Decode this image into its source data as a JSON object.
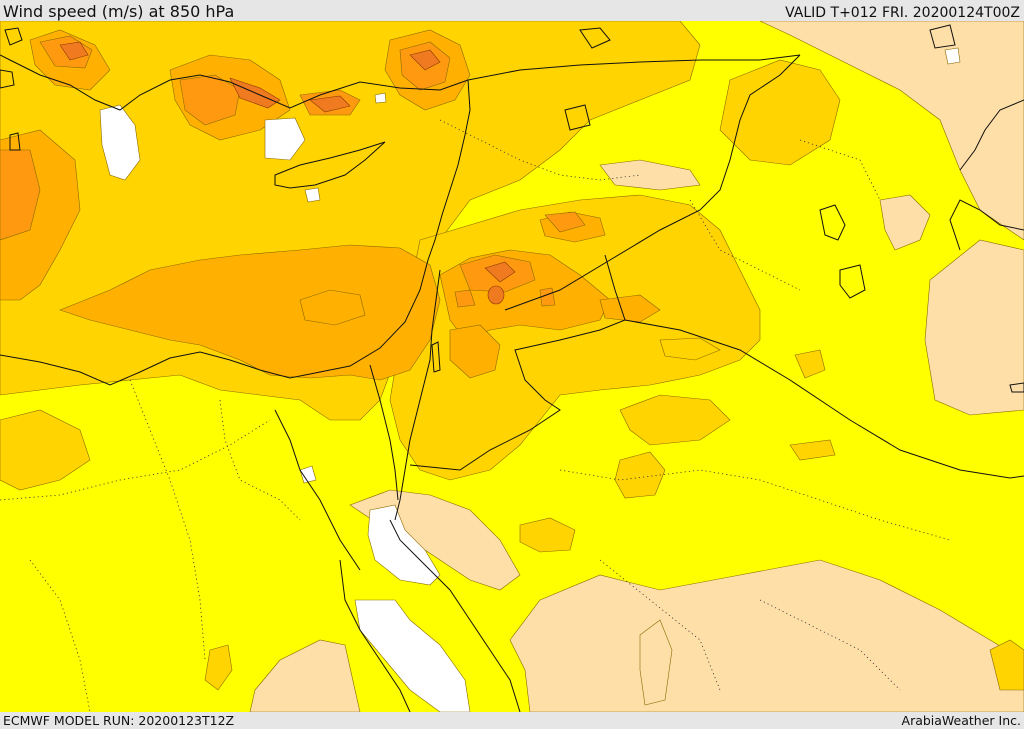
{
  "header": {
    "title": "Wind speed (m/s) at 850 hPa",
    "valid": "VALID T+012 FRI. 20200124T00Z"
  },
  "footer": {
    "model_run": "ECMWF MODEL RUN: 20200123T12Z",
    "credit": "ArabiaWeather Inc."
  },
  "colors": {
    "calm_white": "#ffffff",
    "light_peach": "#ffdfa8",
    "yellow": "#ffff00",
    "gold": "#ffd400",
    "orange_light": "#ffb000",
    "orange": "#ff9a10",
    "orange_dark": "#f07a20",
    "red_core": "#e05a3a"
  }
}
